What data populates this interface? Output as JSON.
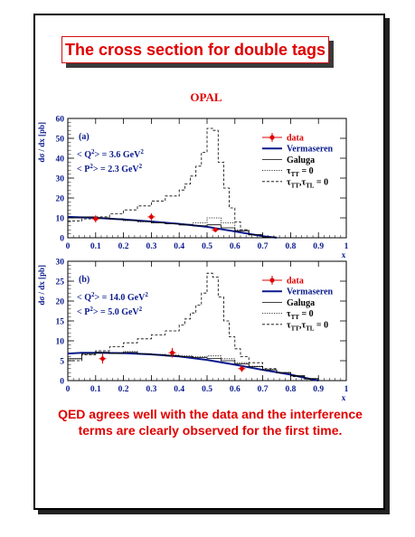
{
  "slide": {
    "title": "The cross section for double tags",
    "conclusion": "QED agrees well with the data and the interference terms are clearly observed for the first time."
  },
  "figure": {
    "experiment": "OPAL",
    "ylabel": "dσ / dx [pb]",
    "xlabel": "x",
    "legend": {
      "data": "data",
      "vermaseren": "Vermaseren",
      "galuga": "Galuga",
      "tau_tt": "τ",
      "tau_tt_sub": "TT",
      "tau_tt_suffix": " = 0",
      "tau_tt_tl": "τ",
      "tau_tt_tl_sub1": "TT",
      "tau_tt_tl_mid": ",τ",
      "tau_tt_tl_sub2": "TL",
      "tau_tt_tl_suffix": " = 0"
    }
  },
  "chart_data": [
    {
      "type": "line",
      "panel": "(a)",
      "q2_label": "< Q",
      "q2_value": "> = 3.6 GeV",
      "p2_label": "< P",
      "p2_value": "> = 2.3 GeV",
      "xlim": [
        0,
        1
      ],
      "ylim": [
        0,
        60
      ],
      "xticks": [
        0,
        0.1,
        0.2,
        0.3,
        0.4,
        0.5,
        0.6,
        0.7,
        0.8,
        0.9,
        1
      ],
      "yticks": [
        0,
        10,
        20,
        30,
        40,
        50,
        60
      ],
      "colors": {
        "data": "#e00000",
        "vermaseren": "#0a1a8c",
        "other": "#000000"
      },
      "data_points": [
        {
          "x": 0.1,
          "y": 9.5,
          "err": 1.8
        },
        {
          "x": 0.3,
          "y": 10.5,
          "err": 1.8
        },
        {
          "x": 0.53,
          "y": 4.0,
          "err": 1.2
        }
      ],
      "series": [
        {
          "name": "Vermaseren",
          "style": "solid-thick",
          "x": [
            0,
            0.1,
            0.2,
            0.3,
            0.4,
            0.5,
            0.6,
            0.7,
            0.75
          ],
          "y": [
            10.5,
            10.0,
            9.2,
            8.2,
            7.0,
            5.5,
            3.2,
            0.8,
            0
          ]
        },
        {
          "name": "Galuga",
          "style": "solid-thin",
          "step": true,
          "x": [
            0,
            0.05,
            0.1,
            0.15,
            0.2,
            0.25,
            0.3,
            0.35,
            0.4,
            0.45,
            0.5,
            0.55,
            0.6,
            0.65,
            0.7
          ],
          "y": [
            10.0,
            10.5,
            10.0,
            9.5,
            8.8,
            8.2,
            7.6,
            7.0,
            6.4,
            6.0,
            6.5,
            5.0,
            3.5,
            1.5,
            0.3
          ]
        },
        {
          "name": "τTT = 0",
          "style": "dotted",
          "step": true,
          "x": [
            0,
            0.05,
            0.1,
            0.15,
            0.2,
            0.25,
            0.3,
            0.35,
            0.4,
            0.45,
            0.5,
            0.55,
            0.6,
            0.65,
            0.7
          ],
          "y": [
            10.0,
            10.3,
            9.8,
            9.3,
            8.6,
            8.0,
            7.5,
            7.0,
            6.8,
            7.5,
            10.0,
            7.5,
            4.0,
            1.5,
            0.3
          ]
        },
        {
          "name": "τTT,τTL = 0",
          "style": "dashed",
          "step": true,
          "x": [
            0,
            0.05,
            0.1,
            0.15,
            0.2,
            0.25,
            0.3,
            0.35,
            0.4,
            0.42,
            0.44,
            0.46,
            0.48,
            0.5,
            0.52,
            0.54,
            0.56,
            0.58,
            0.6,
            0.62,
            0.65,
            0.7,
            0.75
          ],
          "y": [
            8.5,
            9.5,
            10.5,
            12.0,
            14.0,
            16.0,
            18.5,
            21.0,
            24.0,
            27.0,
            31.0,
            36.0,
            43.0,
            55.0,
            54.0,
            38.0,
            25.0,
            15.0,
            8.0,
            4.0,
            1.5,
            0.3,
            0
          ]
        }
      ]
    },
    {
      "type": "line",
      "panel": "(b)",
      "q2_label": "< Q",
      "q2_value": "> = 14.0 GeV",
      "p2_label": "< P",
      "p2_value": "> =  5.0 GeV",
      "xlim": [
        0,
        1
      ],
      "ylim": [
        0,
        30
      ],
      "xticks": [
        0,
        0.1,
        0.2,
        0.3,
        0.4,
        0.5,
        0.6,
        0.7,
        0.8,
        0.9,
        1
      ],
      "yticks": [
        0,
        5,
        10,
        15,
        20,
        25,
        30
      ],
      "colors": {
        "data": "#e00000",
        "vermaseren": "#0a1a8c",
        "other": "#000000"
      },
      "data_points": [
        {
          "x": 0.125,
          "y": 5.5,
          "err": 1.2
        },
        {
          "x": 0.375,
          "y": 7.0,
          "err": 1.2
        },
        {
          "x": 0.625,
          "y": 3.0,
          "err": 0.8
        }
      ],
      "series": [
        {
          "name": "Vermaseren",
          "style": "solid-thick",
          "x": [
            0,
            0.05,
            0.1,
            0.2,
            0.3,
            0.4,
            0.5,
            0.6,
            0.7,
            0.8,
            0.85,
            0.9
          ],
          "y": [
            6.8,
            7.0,
            7.0,
            6.9,
            6.6,
            6.1,
            5.2,
            4.0,
            2.7,
            1.5,
            0.7,
            0
          ]
        },
        {
          "name": "Galuga",
          "style": "solid-thin",
          "step": true,
          "x": [
            0,
            0.05,
            0.1,
            0.15,
            0.2,
            0.25,
            0.3,
            0.35,
            0.4,
            0.45,
            0.5,
            0.55,
            0.6,
            0.65,
            0.7,
            0.75,
            0.8,
            0.85,
            0.9
          ],
          "y": [
            5.5,
            6.8,
            7.0,
            6.8,
            7.1,
            6.7,
            6.5,
            6.2,
            6.0,
            5.8,
            5.6,
            5.0,
            4.2,
            3.5,
            2.7,
            2.0,
            1.2,
            0.5,
            0
          ]
        },
        {
          "name": "τTT = 0",
          "style": "dotted",
          "step": true,
          "x": [
            0,
            0.05,
            0.1,
            0.15,
            0.2,
            0.25,
            0.3,
            0.35,
            0.4,
            0.45,
            0.5,
            0.55,
            0.6,
            0.65,
            0.7,
            0.75,
            0.8,
            0.85,
            0.9
          ],
          "y": [
            5.5,
            6.6,
            7.2,
            7.0,
            7.3,
            6.8,
            6.6,
            6.4,
            6.2,
            6.0,
            6.2,
            5.5,
            4.5,
            3.6,
            2.8,
            2.0,
            1.2,
            0.5,
            0
          ]
        },
        {
          "name": "τTT,τTL = 0",
          "style": "dashed",
          "step": true,
          "x": [
            0,
            0.05,
            0.1,
            0.15,
            0.2,
            0.25,
            0.3,
            0.35,
            0.4,
            0.42,
            0.44,
            0.46,
            0.48,
            0.5,
            0.52,
            0.54,
            0.56,
            0.58,
            0.6,
            0.62,
            0.65,
            0.7,
            0.75,
            0.8,
            0.85,
            0.9
          ],
          "y": [
            5.0,
            6.5,
            7.5,
            8.5,
            9.5,
            10.5,
            11.5,
            12.5,
            14.0,
            15.5,
            17.0,
            19.0,
            22.0,
            27.0,
            26.0,
            21.0,
            15.0,
            11.0,
            8.0,
            6.0,
            4.5,
            3.0,
            2.0,
            1.0,
            0.4,
            0
          ]
        }
      ]
    }
  ]
}
